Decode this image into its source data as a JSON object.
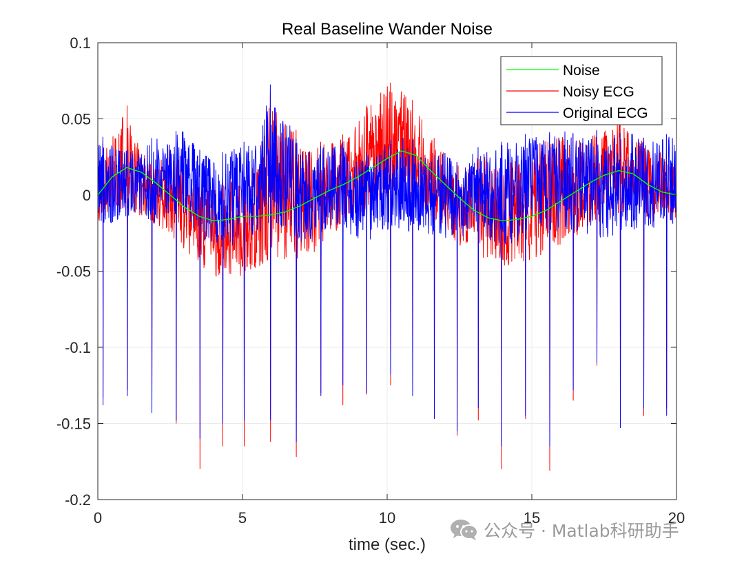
{
  "chart_data": {
    "type": "line",
    "title": "Real Baseline Wander Noise",
    "xlabel": "time (sec.)",
    "ylabel": "",
    "xlim": [
      0,
      20
    ],
    "ylim": [
      -0.2,
      0.1
    ],
    "x_ticks": [
      0,
      5,
      10,
      15,
      20
    ],
    "x_tick_labels": [
      "0",
      "5",
      "10",
      "15",
      "20"
    ],
    "y_ticks": [
      -0.2,
      -0.15,
      -0.1,
      -0.05,
      0,
      0.05,
      0.1
    ],
    "y_tick_labels": [
      "-0.2",
      "-0.15",
      "-0.1",
      "-0.05",
      "0",
      "0.05",
      "0.1"
    ],
    "grid": true,
    "legend_position": "top-right",
    "series": [
      {
        "name": "Noise",
        "color": "#00ff00",
        "x": [
          0,
          0.5,
          1,
          1.5,
          2,
          2.5,
          3,
          3.5,
          4,
          4.5,
          5,
          5.5,
          6,
          6.5,
          7,
          7.5,
          8,
          8.5,
          9,
          9.5,
          10,
          10.5,
          11,
          11.5,
          12,
          12.5,
          13,
          13.5,
          14,
          14.5,
          15,
          15.5,
          16,
          16.5,
          17,
          17.5,
          18,
          18.5,
          19,
          19.5,
          20
        ],
        "y": [
          0,
          0.012,
          0.018,
          0.015,
          0.008,
          0,
          -0.008,
          -0.014,
          -0.017,
          -0.016,
          -0.014,
          -0.014,
          -0.013,
          -0.011,
          -0.007,
          -0.002,
          0.003,
          0.007,
          0.012,
          0.018,
          0.024,
          0.029,
          0.026,
          0.016,
          0.007,
          -0.002,
          -0.01,
          -0.015,
          -0.017,
          -0.016,
          -0.014,
          -0.01,
          -0.004,
          0.002,
          0.008,
          0.013,
          0.016,
          0.014,
          0.007,
          0.002,
          0
        ]
      },
      {
        "name": "Noisy ECG",
        "color": "#ff0000",
        "beat_times": [
          0.18,
          1.02,
          1.87,
          2.71,
          3.53,
          4.32,
          5.06,
          5.97,
          6.86,
          7.71,
          8.47,
          9.29,
          10.12,
          10.88,
          11.63,
          12.42,
          13.15,
          13.95,
          14.78,
          15.62,
          16.43,
          17.25,
          18.06,
          18.87,
          19.66
        ],
        "beat_troughs": [
          -0.133,
          -0.128,
          -0.14,
          -0.15,
          -0.18,
          -0.165,
          -0.165,
          -0.162,
          -0.172,
          -0.13,
          -0.138,
          -0.131,
          -0.125,
          -0.128,
          -0.147,
          -0.158,
          -0.148,
          -0.18,
          -0.147,
          -0.181,
          -0.135,
          -0.112,
          -0.15,
          -0.145,
          -0.14
        ],
        "envelope_top": [
          0.03,
          0.04,
          0.06,
          0.03,
          0.02,
          0.035,
          0.02,
          0.01,
          0.005,
          0.01,
          0.015,
          0.025,
          0.07,
          0.05,
          0.04,
          0.035,
          0.035,
          0.04,
          0.05,
          0.065,
          0.075,
          0.07,
          0.06,
          0.04,
          0.03,
          0.02,
          0.025,
          0.03,
          0.02,
          0.03,
          0.035,
          0.04,
          0.04,
          0.04,
          0.04,
          0.045,
          0.05,
          0.045,
          0.035,
          0.03,
          0.02
        ],
        "envelope_bottom": [
          -0.02,
          -0.015,
          -0.01,
          -0.015,
          -0.025,
          -0.03,
          -0.04,
          -0.05,
          -0.055,
          -0.055,
          -0.055,
          -0.05,
          -0.045,
          -0.045,
          -0.045,
          -0.04,
          -0.03,
          -0.02,
          -0.015,
          -0.01,
          -0.005,
          0,
          -0.005,
          -0.015,
          -0.025,
          -0.035,
          -0.04,
          -0.045,
          -0.05,
          -0.05,
          -0.045,
          -0.04,
          -0.035,
          -0.03,
          -0.025,
          -0.02,
          -0.015,
          -0.015,
          -0.02,
          -0.02,
          -0.02
        ]
      },
      {
        "name": "Original ECG",
        "color": "#0000ff",
        "beat_times": [
          0.18,
          1.02,
          1.87,
          2.71,
          3.53,
          4.32,
          5.06,
          5.97,
          6.86,
          7.71,
          8.47,
          9.29,
          10.12,
          10.88,
          11.63,
          12.42,
          13.15,
          13.95,
          14.78,
          15.62,
          16.43,
          17.25,
          18.06,
          18.87,
          19.66
        ],
        "beat_troughs": [
          -0.138,
          -0.132,
          -0.143,
          -0.148,
          -0.16,
          -0.15,
          -0.148,
          -0.148,
          -0.162,
          -0.132,
          -0.125,
          -0.13,
          -0.118,
          -0.132,
          -0.147,
          -0.155,
          -0.14,
          -0.165,
          -0.145,
          -0.165,
          -0.128,
          -0.11,
          -0.153,
          -0.14,
          -0.145
        ],
        "envelope_top": [
          0.04,
          0.035,
          0.03,
          0.03,
          0.04,
          0.04,
          0.045,
          0.03,
          0.025,
          0.03,
          0.035,
          0.035,
          0.075,
          0.055,
          0.03,
          0.03,
          0.035,
          0.035,
          0.025,
          0.03,
          0.035,
          0.04,
          0.035,
          0.025,
          0.03,
          0.02,
          0.03,
          0.035,
          0.035,
          0.04,
          0.04,
          0.04,
          0.045,
          0.04,
          0.04,
          0.045,
          0.04,
          0.045,
          0.035,
          0.04,
          0.04
        ],
        "envelope_bottom": [
          -0.025,
          -0.02,
          -0.015,
          -0.015,
          -0.02,
          -0.015,
          -0.02,
          -0.03,
          -0.035,
          -0.035,
          -0.035,
          -0.03,
          -0.02,
          -0.025,
          -0.035,
          -0.03,
          -0.025,
          -0.025,
          -0.035,
          -0.03,
          -0.025,
          -0.025,
          -0.03,
          -0.03,
          -0.03,
          -0.03,
          -0.03,
          -0.035,
          -0.035,
          -0.035,
          -0.03,
          -0.03,
          -0.025,
          -0.025,
          -0.03,
          -0.03,
          -0.03,
          -0.025,
          -0.025,
          -0.025,
          -0.025
        ]
      }
    ]
  },
  "watermark": {
    "text": "公众号 · Matlab科研助手",
    "icon": "wechat-icon"
  }
}
